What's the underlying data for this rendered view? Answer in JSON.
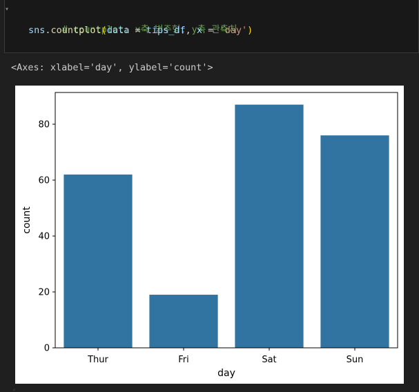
{
  "code_cell": {
    "comment": "# countplot: x축 범주형, y축 관측치",
    "call_obj": "sns",
    "call_dot": ".",
    "call_func": "countplot",
    "paren_open": "(",
    "arg1_name": "data",
    "eq1": " = ",
    "arg1_val": "tips_df",
    "comma": ", ",
    "arg2_name": "x",
    "eq2": " = ",
    "arg2_val": "'day'",
    "paren_close": ")"
  },
  "output": {
    "repr": "<Axes: xlabel='day', ylabel='count'>"
  },
  "chart_data": {
    "type": "bar",
    "categories": [
      "Thur",
      "Fri",
      "Sat",
      "Sun"
    ],
    "values": [
      62,
      19,
      87,
      76
    ],
    "title": "",
    "xlabel": "day",
    "ylabel": "count",
    "ylim": [
      0,
      91.35
    ],
    "yticks": [
      0,
      20,
      40,
      60,
      80
    ],
    "bar_color": "#3274a1",
    "grid": false
  }
}
